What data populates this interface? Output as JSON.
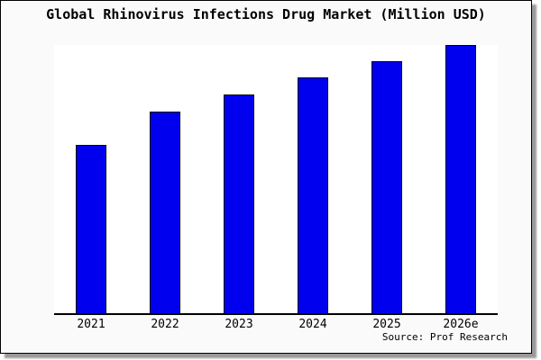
{
  "window": {
    "background_color": "#fafafa",
    "border_color": "#000000",
    "shadow_color": "#999999",
    "plot_background_color": "#ffffff"
  },
  "title": "Global Rhinovirus Infections Drug Market (Million USD)",
  "source": "Source: Prof Research",
  "chart_data": {
    "type": "bar",
    "title": "Global Rhinovirus Infections Drug Market (Million USD)",
    "categories": [
      "2021",
      "2022",
      "2023",
      "2024",
      "2025",
      "2026e"
    ],
    "values": [
      187,
      224,
      243,
      262,
      280,
      298
    ],
    "value_scale": "relative-pixel-height (chart displays no numeric y-axis, no gridlines)",
    "ylim": [
      0,
      300
    ],
    "xlabel": "",
    "ylabel": "",
    "grid": false,
    "legend": false,
    "bar_color": "#0000ee",
    "bar_border_color": "#000000",
    "axis_line": "bottom-only",
    "source_annotation": "Source: Prof Research"
  }
}
